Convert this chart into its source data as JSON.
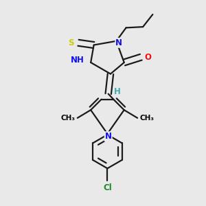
{
  "bg_color": "#e9e9e9",
  "atom_colors": {
    "C": "#000000",
    "N": "#1010ee",
    "O": "#ee1010",
    "S": "#cccc00",
    "H": "#44aaaa",
    "Cl": "#228822"
  },
  "bond_color": "#1a1a1a",
  "bond_width": 1.6,
  "figsize": [
    3.0,
    3.0
  ],
  "dpi": 100,
  "xlim": [
    -1.8,
    1.8
  ],
  "ylim": [
    -2.6,
    2.0
  ]
}
